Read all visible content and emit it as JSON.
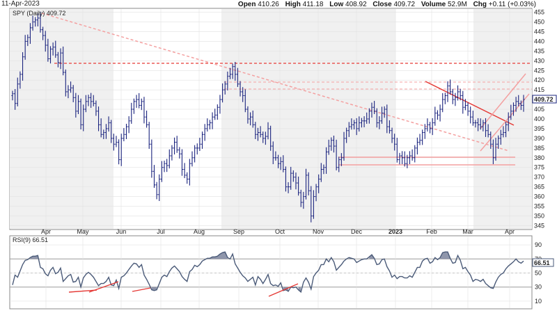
{
  "header": {
    "date": "11-Apr-2023",
    "open_label": "Open",
    "open": "410.26",
    "high_label": "High",
    "high": "411.18",
    "low_label": "Low",
    "low": "408.92",
    "close_label": "Close",
    "close": "409.72",
    "volume_label": "Volume",
    "volume": "52.9M",
    "chg_label": "Chg",
    "chg": "+0.11 (+0.03%)"
  },
  "colors": {
    "price_bars": "#1a237e",
    "pane_bg": "#f0f0f0",
    "trend_red": "#e53935",
    "trend_pink": "#f4a0a0",
    "rsi_line": "#4a5a78",
    "last_price_box": "#1a237e"
  },
  "chart_data": [
    {
      "type": "ohlc",
      "legend": "SPY (Daily) 409.72",
      "last_value_label": "409.72",
      "y_ticks": [
        345,
        350,
        355,
        360,
        365,
        370,
        375,
        380,
        385,
        390,
        395,
        400,
        405,
        410,
        415,
        420,
        425,
        430,
        435,
        440,
        445,
        450,
        455
      ],
      "ylim": [
        343,
        457
      ],
      "x_labels": [
        "Apr",
        "May",
        "Jun",
        "Jul",
        "Aug",
        "Sep",
        "Oct",
        "Nov",
        "Dec",
        "2023",
        "Feb",
        "Mar",
        "Apr"
      ],
      "closes": [
        413,
        408,
        418,
        423,
        432,
        440,
        442,
        447,
        450,
        451,
        452,
        446,
        443,
        438,
        431,
        436,
        437,
        433,
        429,
        434,
        424,
        414,
        415,
        416,
        411,
        404,
        409,
        397,
        405,
        409,
        411,
        409,
        408,
        404,
        397,
        392,
        393,
        395,
        398,
        390,
        387,
        388,
        379,
        390,
        392,
        396,
        399,
        405,
        409,
        410,
        407,
        409,
        401,
        397,
        387,
        373,
        366,
        361,
        369,
        375,
        377,
        376,
        381,
        385,
        388,
        384,
        382,
        374,
        371,
        369,
        377,
        380,
        385,
        385,
        387,
        392,
        395,
        397,
        398,
        401,
        402,
        406,
        410,
        415,
        418,
        422,
        423,
        427,
        423,
        418,
        414,
        412,
        405,
        400,
        401,
        397,
        392,
        393,
        392,
        390,
        391,
        395,
        386,
        380,
        380,
        377,
        378,
        374,
        365,
        365,
        372,
        370,
        367,
        362,
        357,
        360,
        371,
        363,
        350,
        360,
        365,
        369,
        374,
        375,
        383,
        386,
        389,
        386,
        375,
        379,
        380,
        390,
        394,
        396,
        397,
        398,
        395,
        398,
        399,
        399,
        400,
        404,
        406,
        404,
        398,
        399,
        403,
        405,
        396,
        394,
        390,
        387,
        379,
        381,
        380,
        377,
        380,
        381,
        380,
        385,
        388,
        389,
        393,
        395,
        397,
        395,
        398,
        403,
        402,
        405,
        410,
        412,
        417,
        414,
        410,
        411,
        414,
        412,
        406,
        407,
        404,
        401,
        398,
        398,
        397,
        396,
        398,
        394,
        392,
        387,
        380,
        387,
        390,
        392,
        393,
        397,
        401,
        404,
        407,
        409,
        408,
        407,
        410
      ]
    },
    {
      "type": "line",
      "legend": "RSI(9) 66.51",
      "last_value_label": "66.51",
      "y_ticks": [
        10,
        30,
        50,
        70,
        90
      ],
      "ylim": [
        0,
        100
      ],
      "x_labels": [
        "Apr",
        "May",
        "Jun",
        "Jul",
        "Aug",
        "Sep",
        "Oct",
        "Nov",
        "Dec",
        "2023",
        "Feb",
        "Mar",
        "Apr"
      ],
      "values": [
        33,
        47,
        44,
        53,
        62,
        68,
        69,
        72,
        74,
        74,
        75,
        58,
        56,
        49,
        46,
        54,
        58,
        49,
        51,
        57,
        38,
        42,
        46,
        48,
        37,
        38,
        44,
        30,
        43,
        48,
        51,
        48,
        44,
        38,
        32,
        35,
        35,
        38,
        44,
        33,
        32,
        40,
        28,
        44,
        46,
        50,
        55,
        60,
        64,
        63,
        58,
        62,
        47,
        41,
        34,
        26,
        25,
        26,
        35,
        44,
        47,
        45,
        52,
        57,
        60,
        56,
        52,
        45,
        41,
        38,
        52,
        55,
        61,
        59,
        62,
        67,
        69,
        71,
        71,
        73,
        73,
        74,
        77,
        79,
        80,
        72,
        70,
        77,
        63,
        57,
        51,
        46,
        43,
        38,
        41,
        44,
        33,
        45,
        41,
        35,
        41,
        48,
        35,
        32,
        33,
        31,
        36,
        25,
        26,
        24,
        30,
        29,
        30,
        26,
        23,
        37,
        43,
        37,
        27,
        45,
        50,
        54,
        62,
        62,
        70,
        66,
        72,
        66,
        54,
        58,
        62,
        67,
        70,
        72,
        71,
        70,
        65,
        67,
        69,
        70,
        70,
        73,
        76,
        71,
        62,
        63,
        69,
        70,
        59,
        53,
        44,
        47,
        42,
        45,
        45,
        43,
        43,
        46,
        44,
        51,
        58,
        58,
        67,
        70,
        71,
        64,
        66,
        72,
        69,
        72,
        79,
        80,
        80,
        71,
        64,
        65,
        75,
        68,
        56,
        58,
        52,
        47,
        38,
        41,
        40,
        38,
        41,
        35,
        32,
        29,
        28,
        37,
        44,
        48,
        50,
        56,
        60,
        63,
        66,
        70,
        66,
        64,
        67
      ]
    }
  ]
}
